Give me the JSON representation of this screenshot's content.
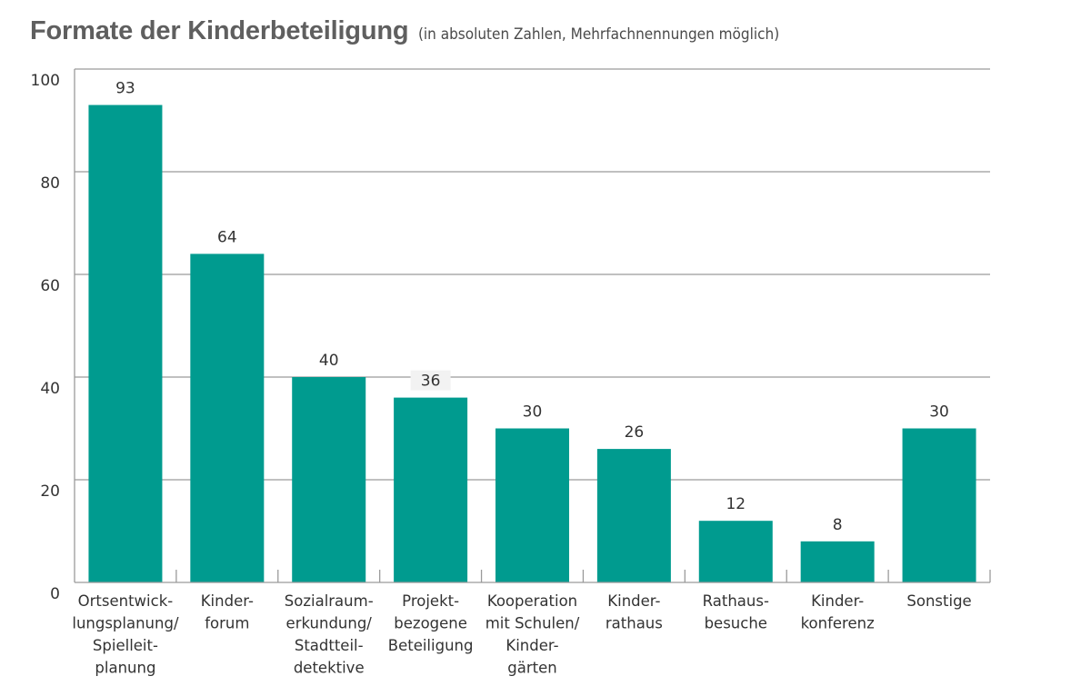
{
  "chart_data": {
    "type": "bar",
    "title": "Formate der Kinderbeteiligung",
    "subtitle": "(in absoluten Zahlen, Mehrfachnennungen möglich)",
    "xlabel": "",
    "ylabel": "",
    "ylim": [
      0,
      100
    ],
    "yticks": [
      0,
      20,
      40,
      60,
      80,
      100
    ],
    "grid": true,
    "bar_color": "#009b8f",
    "grid_color": "#9a9a9a",
    "categories": [
      [
        "Ortsentwick-",
        "lungsplanung/",
        "Spielleit-",
        "planung"
      ],
      [
        "Kinder-",
        "forum"
      ],
      [
        "Sozialraum-",
        "erkundung/",
        "Stadtteil-",
        "detektive"
      ],
      [
        "Projekt-",
        "bezogene",
        "Beteiligung"
      ],
      [
        "Kooperation",
        "mit Schulen/",
        "Kinder-",
        "gärten"
      ],
      [
        "Kinder-",
        "rathaus"
      ],
      [
        "Rathaus-",
        "besuche"
      ],
      [
        "Kinder-",
        "konferenz"
      ],
      [
        "Sonstige"
      ]
    ],
    "values": [
      93,
      64,
      40,
      36,
      30,
      26,
      12,
      8,
      30
    ]
  }
}
